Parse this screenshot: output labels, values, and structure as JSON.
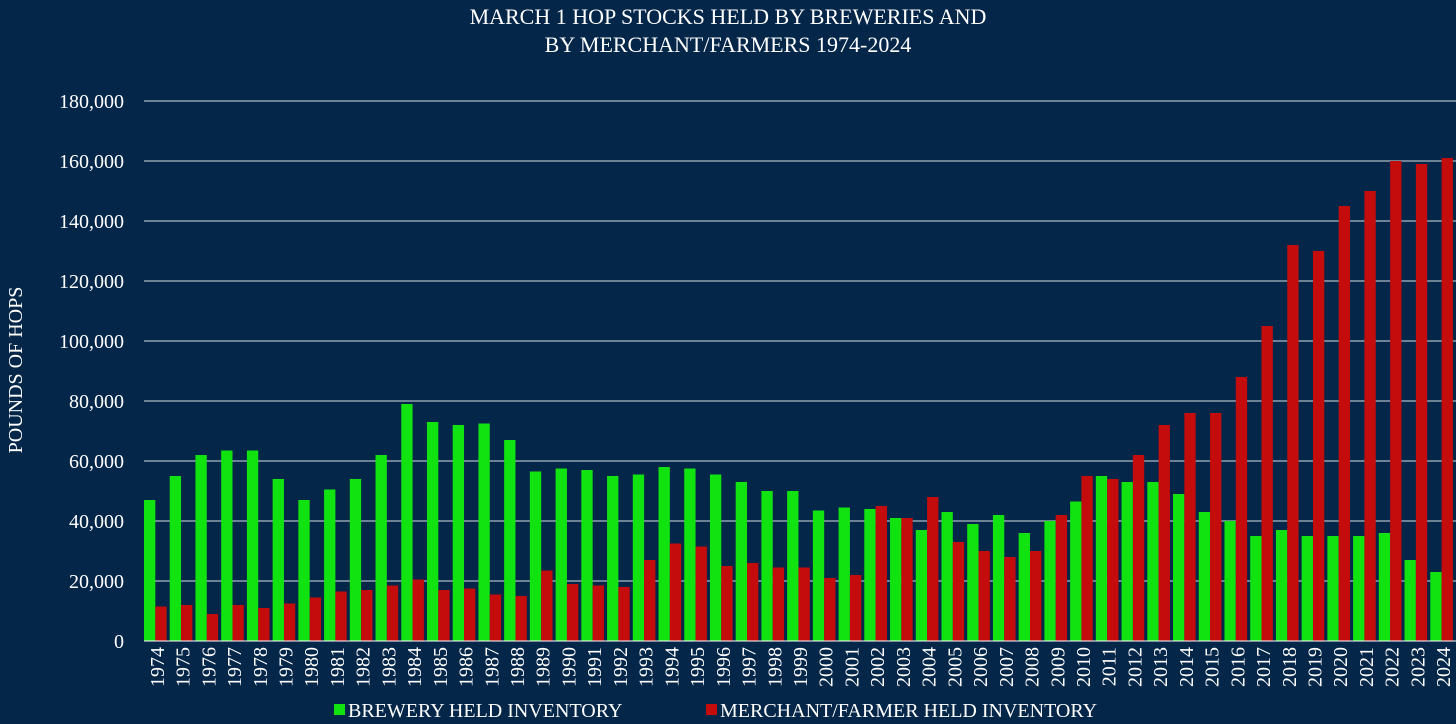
{
  "chart_data": {
    "type": "bar",
    "title": "MARCH 1 HOP STOCKS HELD BY BREWERIES AND",
    "subtitle": "BY MERCHANT/FARMERS 1974-2024",
    "ylabel": "POUNDS OF HOPS",
    "xlabel": "",
    "ylim": [
      0,
      180000
    ],
    "y_ticks": [
      "0",
      "20,000",
      "40,000",
      "60,000",
      "80,000",
      "100,000",
      "120,000",
      "140,000",
      "160,000",
      "180,000"
    ],
    "y_tick_values": [
      0,
      20000,
      40000,
      60000,
      80000,
      100000,
      120000,
      140000,
      160000,
      180000
    ],
    "grid": true,
    "legend_position": "bottom",
    "categories": [
      "1974",
      "1975",
      "1976",
      "1977",
      "1978",
      "1979",
      "1980",
      "1981",
      "1982",
      "1983",
      "1984",
      "1985",
      "1986",
      "1987",
      "1988",
      "1989",
      "1990",
      "1991",
      "1992",
      "1993",
      "1994",
      "1995",
      "1996",
      "1997",
      "1998",
      "1999",
      "2000",
      "2001",
      "2002",
      "2003",
      "2004",
      "2005",
      "2006",
      "2007",
      "2008",
      "2009",
      "2010",
      "2011",
      "2012",
      "2013",
      "2014",
      "2015",
      "2016",
      "2017",
      "2018",
      "2019",
      "2020",
      "2021",
      "2022",
      "2023",
      "2024"
    ],
    "series": [
      {
        "name": "BREWERY HELD INVENTORY",
        "color": "#11e311",
        "values": [
          47000,
          55000,
          62000,
          63500,
          63500,
          54000,
          47000,
          50500,
          54000,
          62000,
          79000,
          73000,
          72000,
          72500,
          67000,
          56500,
          57500,
          57000,
          55000,
          55500,
          58000,
          57500,
          55500,
          53000,
          50000,
          50000,
          43500,
          44500,
          44000,
          41000,
          37000,
          43000,
          39000,
          42000,
          36000,
          40000,
          46500,
          55000,
          53000,
          53000,
          49000,
          43000,
          40000,
          35000,
          37000,
          35000,
          35000,
          35000,
          36000,
          27000,
          23000
        ]
      },
      {
        "name": "MERCHANT/FARMER HELD INVENTORY",
        "color": "#c40c0c",
        "values": [
          11500,
          12000,
          9000,
          12000,
          11000,
          12500,
          14500,
          16500,
          17000,
          18500,
          20500,
          17000,
          17500,
          15500,
          15000,
          23500,
          19000,
          18500,
          18000,
          27000,
          32500,
          31500,
          25000,
          26000,
          24500,
          24500,
          21000,
          22000,
          45000,
          41000,
          48000,
          33000,
          30000,
          28000,
          30000,
          42000,
          55000,
          54000,
          62000,
          72000,
          76000,
          76000,
          88000,
          105000,
          132000,
          130000,
          145000,
          150000,
          160000,
          159000,
          161000
        ]
      }
    ]
  }
}
